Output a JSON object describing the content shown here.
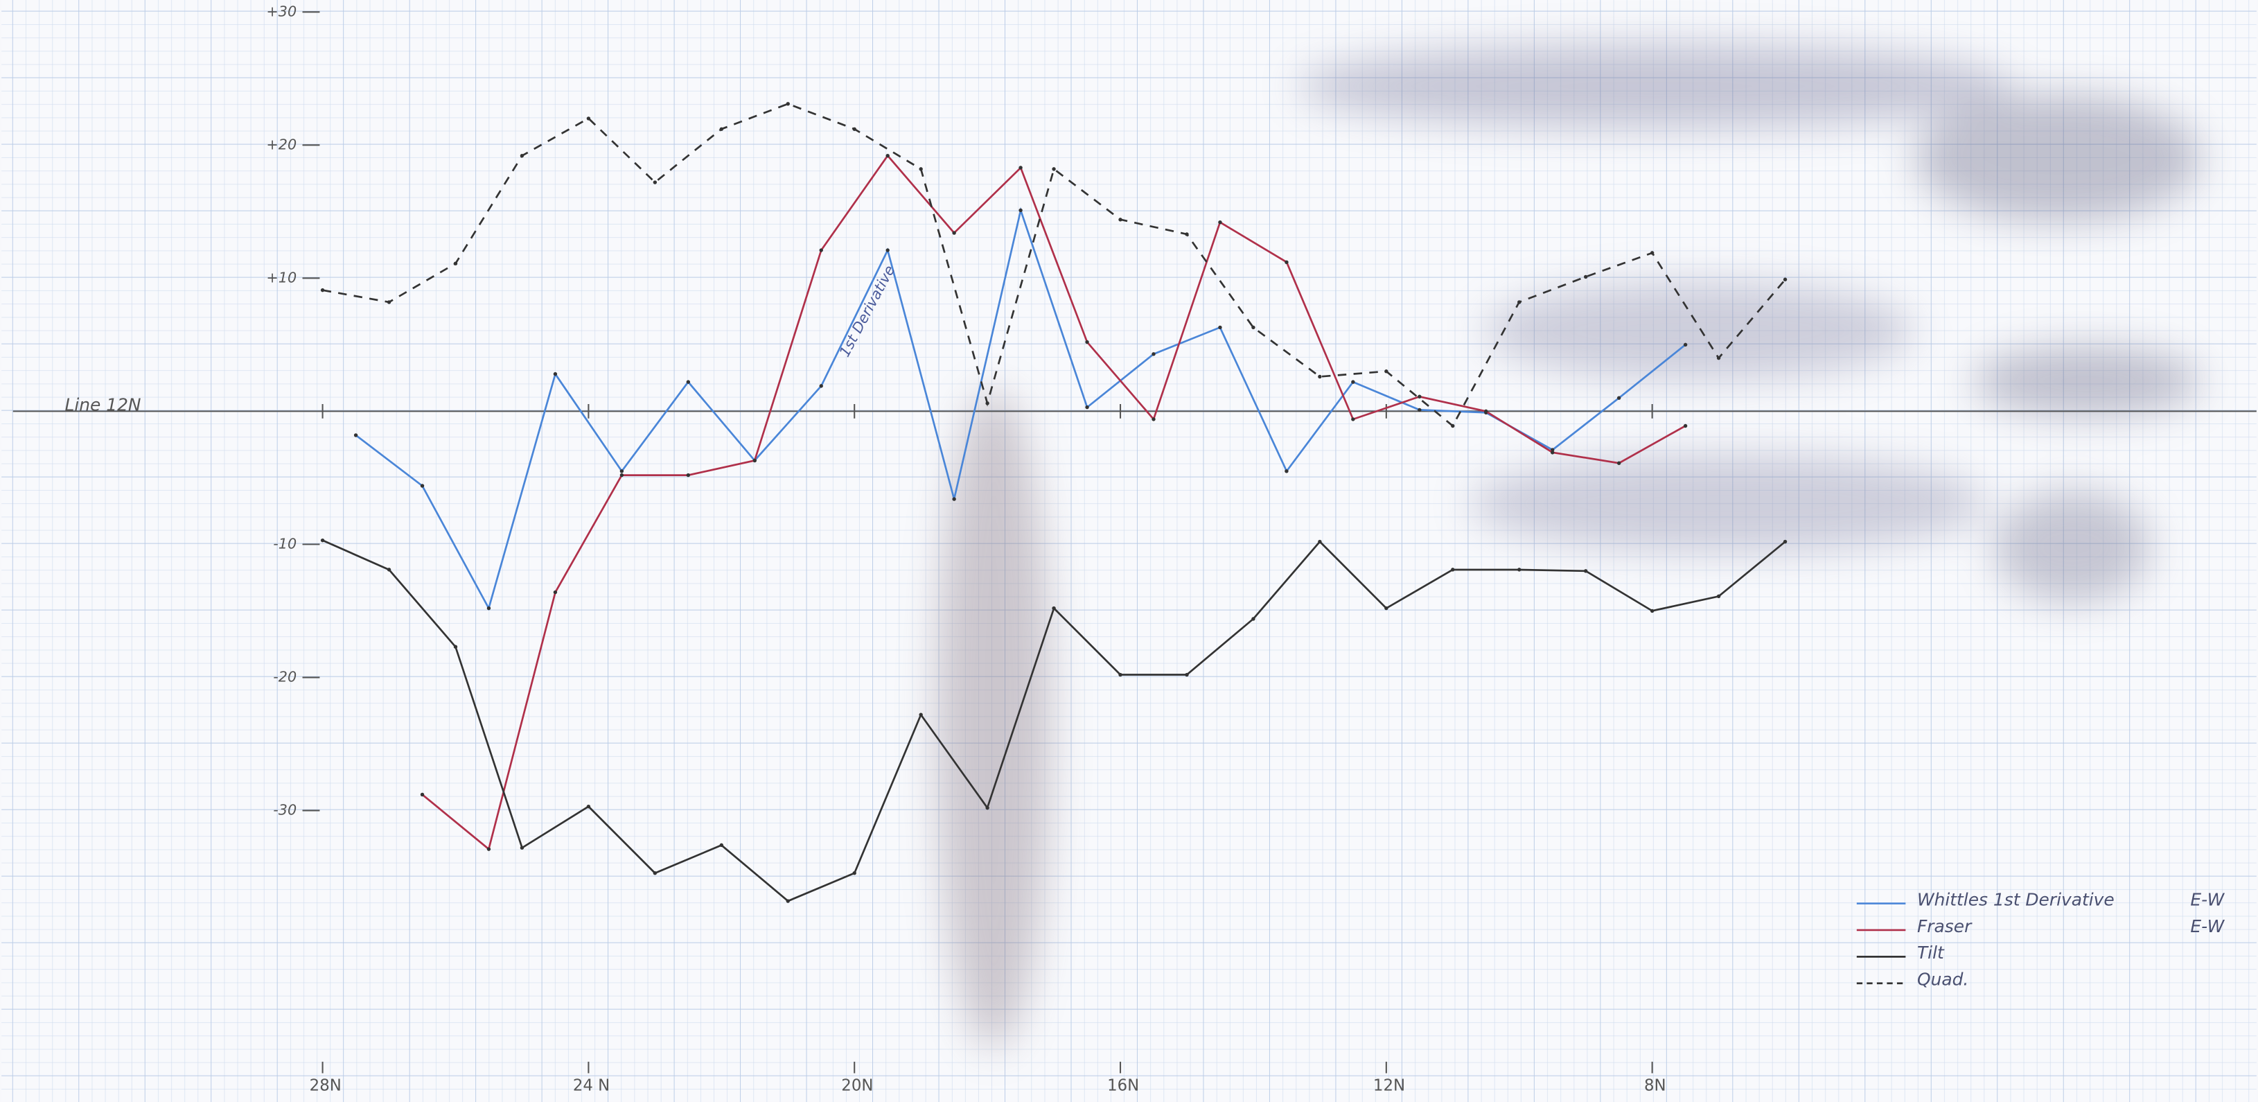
{
  "chart_data": {
    "type": "line",
    "baseline_label": "Line 12N",
    "annotations": [
      {
        "text": "1st Derivative",
        "x": 19.8,
        "y": 7.5
      }
    ],
    "xlim": [
      32.83,
      -1.09
    ],
    "xticks": [
      {
        "value": 28,
        "label": "28N"
      },
      {
        "value": 24,
        "label": "24 N"
      },
      {
        "value": 20,
        "label": "20N"
      },
      {
        "value": 16,
        "label": "16N"
      },
      {
        "value": 12,
        "label": "12N"
      },
      {
        "value": 8,
        "label": "8N"
      }
    ],
    "ylim": [
      -51.9,
      30.9
    ],
    "yticks": [
      {
        "value": 30,
        "label": "+30"
      },
      {
        "value": 20,
        "label": "+20"
      },
      {
        "value": 10,
        "label": "+10"
      },
      -10,
      -20,
      -30
    ],
    "series": [
      {
        "name": "Whittles 1st Derivative",
        "suffix": "E-W",
        "color": "#4a86d8",
        "dash": false,
        "x": [
          27.5,
          26.5,
          25.5,
          24.5,
          23.5,
          22.5,
          21.5,
          20.5,
          19.5,
          18.5,
          17.5,
          16.5,
          15.5,
          14.5,
          13.5,
          12.5,
          11.5,
          10.5,
          9.5,
          8.5,
          7.5
        ],
        "values": [
          -1.8,
          -5.6,
          -14.8,
          2.8,
          -4.5,
          2.2,
          -3.7,
          1.9,
          12.1,
          -6.6,
          15.1,
          0.3,
          4.3,
          6.3,
          -4.5,
          2.2,
          0.1,
          -0.1,
          -2.9,
          1.0,
          5.0
        ]
      },
      {
        "name": "Fraser",
        "suffix": "E-W",
        "color": "#b0304a",
        "dash": false,
        "x": [
          26.5,
          25.5,
          24.5,
          23.5,
          22.5,
          21.5,
          20.5,
          19.5,
          18.5,
          17.5,
          16.5,
          15.5,
          14.5,
          13.5,
          12.5,
          11.5,
          10.5,
          9.5,
          8.5,
          7.5
        ],
        "values": [
          -28.8,
          -32.9,
          -13.6,
          -4.8,
          -4.8,
          -3.7,
          12.1,
          19.2,
          13.4,
          18.3,
          5.2,
          -0.6,
          14.2,
          11.2,
          -0.6,
          1.1,
          0,
          -3.1,
          -3.9,
          -1.1
        ]
      },
      {
        "name": "Tilt",
        "color": "#333333",
        "dash": false,
        "x": [
          28,
          27,
          26,
          25,
          24,
          23,
          22,
          21,
          20,
          19,
          18,
          17,
          16,
          15,
          14,
          13,
          12,
          11,
          10,
          9,
          8,
          7,
          6
        ],
        "values": [
          -9.7,
          -11.9,
          -17.7,
          -32.8,
          -29.7,
          -34.7,
          -32.6,
          -36.8,
          -34.7,
          -22.8,
          -29.8,
          -14.8,
          -19.8,
          -19.8,
          -15.6,
          -9.8,
          -14.8,
          -11.9,
          -11.9,
          -12.0,
          -15.0,
          -13.9,
          -9.8
        ]
      },
      {
        "name": "Quad.",
        "color": "#333333",
        "dash": true,
        "x": [
          28,
          27,
          26,
          25,
          24,
          23,
          22,
          21,
          20,
          19,
          18,
          17,
          16,
          15,
          14,
          13,
          12,
          11,
          10,
          9,
          8,
          7,
          6
        ],
        "values": [
          9.1,
          8.2,
          11.1,
          19.2,
          22,
          17.2,
          21.2,
          23.1,
          21.2,
          18.2,
          0.6,
          18.2,
          14.4,
          13.3,
          6.3,
          2.6,
          3.0,
          -1.1,
          8.2,
          10.1,
          11.9,
          4.0,
          9.9
        ]
      }
    ]
  }
}
